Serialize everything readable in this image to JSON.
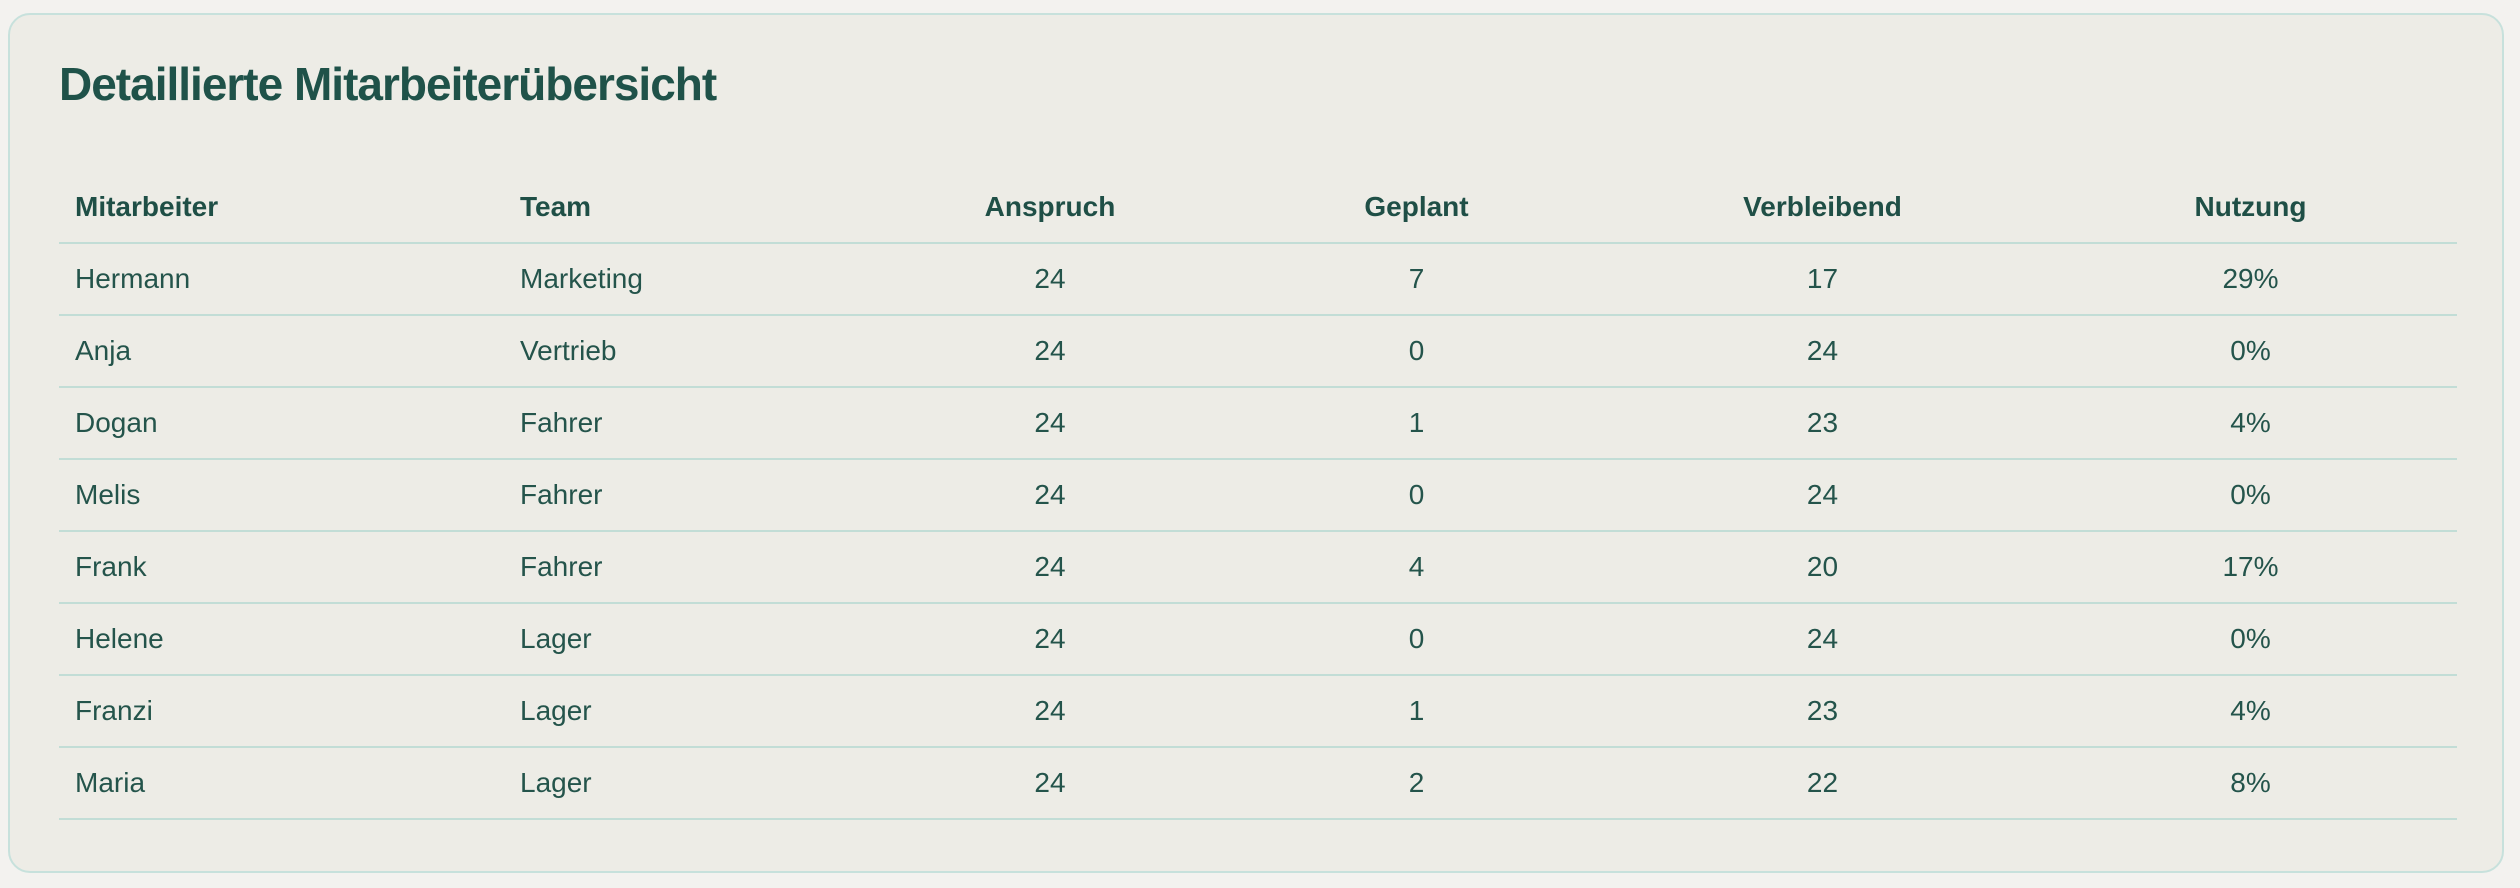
{
  "card": {
    "title": "Detaillierte Mitarbeiterübersicht"
  },
  "table": {
    "headers": {
      "employee": "Mitarbeiter",
      "team": "Team",
      "entitlement": "Anspruch",
      "planned": "Geplant",
      "remaining": "Verbleibend",
      "usage": "Nutzung"
    },
    "rows": [
      {
        "employee": "Hermann",
        "team": "Marketing",
        "entitlement": "24",
        "planned": "7",
        "remaining": "17",
        "usage": "29%"
      },
      {
        "employee": "Anja",
        "team": "Vertrieb",
        "entitlement": "24",
        "planned": "0",
        "remaining": "24",
        "usage": "0%"
      },
      {
        "employee": "Dogan",
        "team": "Fahrer",
        "entitlement": "24",
        "planned": "1",
        "remaining": "23",
        "usage": "4%"
      },
      {
        "employee": "Melis",
        "team": "Fahrer",
        "entitlement": "24",
        "planned": "0",
        "remaining": "24",
        "usage": "0%"
      },
      {
        "employee": "Frank",
        "team": "Fahrer",
        "entitlement": "24",
        "planned": "4",
        "remaining": "20",
        "usage": "17%"
      },
      {
        "employee": "Helene",
        "team": "Lager",
        "entitlement": "24",
        "planned": "0",
        "remaining": "24",
        "usage": "0%"
      },
      {
        "employee": "Franzi",
        "team": "Lager",
        "entitlement": "24",
        "planned": "1",
        "remaining": "23",
        "usage": "4%"
      },
      {
        "employee": "Maria",
        "team": "Lager",
        "entitlement": "24",
        "planned": "2",
        "remaining": "22",
        "usage": "8%"
      }
    ]
  }
}
